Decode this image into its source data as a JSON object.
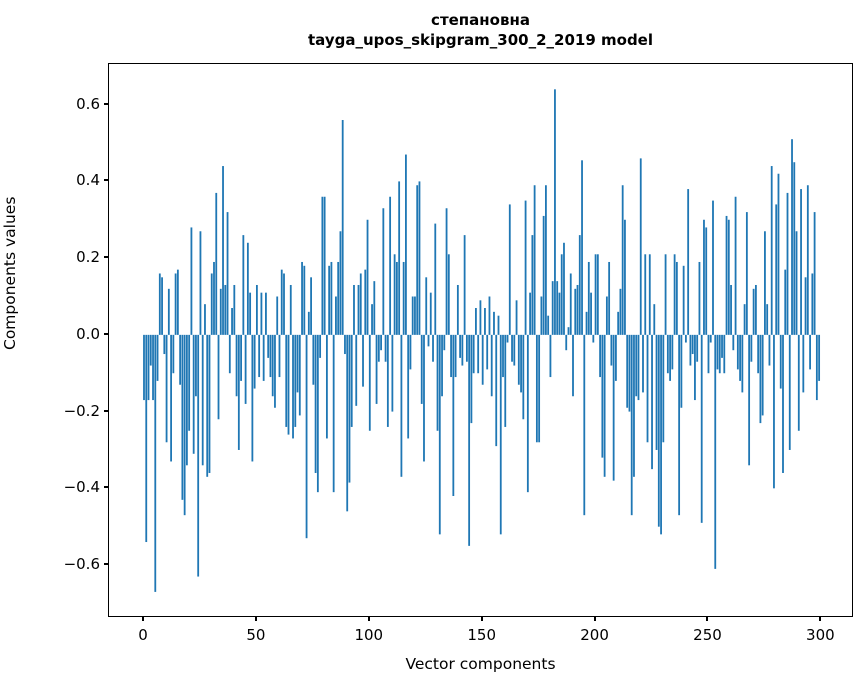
{
  "title": {
    "line1": "степановна",
    "line2": "tayga_upos_skipgram_300_2_2019 model"
  },
  "chart_data": {
    "type": "bar",
    "title": "степановна\ntayga_upos_skipgram_300_2_2019 model",
    "xlabel": "Vector components",
    "ylabel": "Components values",
    "x_start": 0,
    "x_end": 299,
    "xlim": [
      -15.5,
      314.45
    ],
    "ylim": [
      -0.738,
      0.706
    ],
    "xticks": [
      0,
      50,
      100,
      150,
      200,
      250,
      300
    ],
    "xtick_labels": [
      "0",
      "50",
      "100",
      "150",
      "200",
      "250",
      "300"
    ],
    "yticks": [
      0.6,
      0.4,
      0.2,
      0.0,
      -0.2,
      -0.4,
      -0.6
    ],
    "ytick_labels": [
      "0.6",
      "0.4",
      "0.2",
      "0.0",
      "−0.2",
      "−0.4",
      "−0.6"
    ],
    "grid": false,
    "legend": "none",
    "bar_color": "#1f77b4",
    "bar_width_units": 0.8,
    "values": [
      -0.17,
      -0.54,
      -0.17,
      -0.08,
      -0.17,
      -0.67,
      -0.12,
      0.16,
      0.15,
      -0.05,
      -0.28,
      0.12,
      -0.33,
      -0.1,
      0.16,
      0.17,
      -0.13,
      -0.43,
      -0.47,
      -0.34,
      -0.25,
      0.28,
      -0.31,
      -0.16,
      -0.63,
      0.27,
      -0.34,
      0.08,
      -0.37,
      -0.36,
      0.16,
      0.19,
      0.37,
      -0.22,
      0.12,
      0.44,
      0.13,
      0.32,
      -0.1,
      0.07,
      0.13,
      -0.16,
      -0.3,
      -0.12,
      0.26,
      -0.18,
      0.24,
      0.11,
      -0.33,
      -0.14,
      0.13,
      -0.11,
      0.11,
      -0.12,
      0.11,
      -0.06,
      -0.11,
      -0.16,
      -0.19,
      0.1,
      -0.11,
      0.17,
      0.16,
      -0.24,
      -0.26,
      0.13,
      -0.27,
      -0.24,
      -0.15,
      -0.21,
      0.19,
      0.18,
      -0.53,
      0.06,
      0.15,
      -0.13,
      -0.36,
      -0.41,
      -0.06,
      0.36,
      0.36,
      -0.27,
      0.18,
      0.19,
      -0.41,
      0.1,
      0.19,
      0.27,
      0.56,
      -0.05,
      -0.46,
      -0.385,
      -0.24,
      0.13,
      -0.185,
      0.13,
      0.16,
      -0.135,
      0.17,
      0.3,
      -0.25,
      0.08,
      0.14,
      -0.18,
      -0.07,
      -0.04,
      0.33,
      -0.07,
      -0.24,
      0.36,
      -0.2,
      0.21,
      0.19,
      0.4,
      -0.37,
      0.19,
      0.47,
      -0.27,
      -0.09,
      0.1,
      0.1,
      0.39,
      0.4,
      -0.18,
      -0.33,
      0.15,
      -0.03,
      0.11,
      -0.07,
      0.29,
      -0.25,
      -0.52,
      -0.16,
      -0.04,
      0.33,
      0.21,
      -0.11,
      -0.42,
      -0.11,
      0.13,
      -0.06,
      -0.08,
      0.26,
      -0.07,
      -0.55,
      -0.23,
      -0.1,
      0.07,
      -0.1,
      0.09,
      -0.13,
      0.07,
      -0.09,
      0.1,
      -0.16,
      0.06,
      -0.29,
      0.05,
      -0.52,
      -0.11,
      -0.24,
      -0.02,
      0.34,
      -0.07,
      -0.08,
      0.09,
      -0.13,
      -0.15,
      -0.22,
      0.35,
      -0.41,
      0.11,
      0.26,
      0.39,
      -0.28,
      -0.28,
      0.1,
      0.31,
      0.39,
      0.05,
      -0.11,
      0.14,
      0.64,
      0.14,
      0.11,
      0.21,
      0.24,
      -0.04,
      0.02,
      0.16,
      -0.16,
      0.12,
      0.13,
      0.26,
      0.455,
      -0.47,
      0.06,
      0.19,
      0.11,
      -0.02,
      0.21,
      0.21,
      -0.11,
      -0.32,
      -0.37,
      0.1,
      0.19,
      -0.08,
      -0.38,
      -0.12,
      0.06,
      0.12,
      0.39,
      0.3,
      -0.19,
      -0.2,
      -0.47,
      -0.37,
      -0.16,
      -0.17,
      0.46,
      -0.15,
      0.21,
      -0.28,
      0.21,
      -0.35,
      0.08,
      -0.3,
      -0.5,
      -0.52,
      -0.28,
      0.21,
      -0.1,
      -0.12,
      -0.09,
      0.21,
      0.19,
      -0.47,
      -0.19,
      0.18,
      -0.02,
      0.38,
      -0.08,
      -0.05,
      -0.17,
      -0.07,
      0.19,
      -0.49,
      0.3,
      0.28,
      -0.1,
      -0.02,
      0.35,
      -0.61,
      -0.09,
      -0.1,
      -0.06,
      -0.1,
      0.31,
      0.3,
      0.13,
      -0.04,
      0.36,
      -0.09,
      -0.12,
      -0.15,
      0.08,
      0.32,
      -0.34,
      -0.07,
      0.12,
      0.13,
      -0.1,
      -0.23,
      -0.21,
      0.27,
      0.08,
      -0.08,
      0.44,
      -0.4,
      0.34,
      0.42,
      -0.14,
      -0.36,
      0.17,
      0.37,
      -0.3,
      0.51,
      0.45,
      0.27,
      -0.25,
      0.38,
      -0.15,
      0.15,
      0.39,
      -0.09,
      0.16,
      0.32,
      -0.17,
      -0.12
    ]
  }
}
